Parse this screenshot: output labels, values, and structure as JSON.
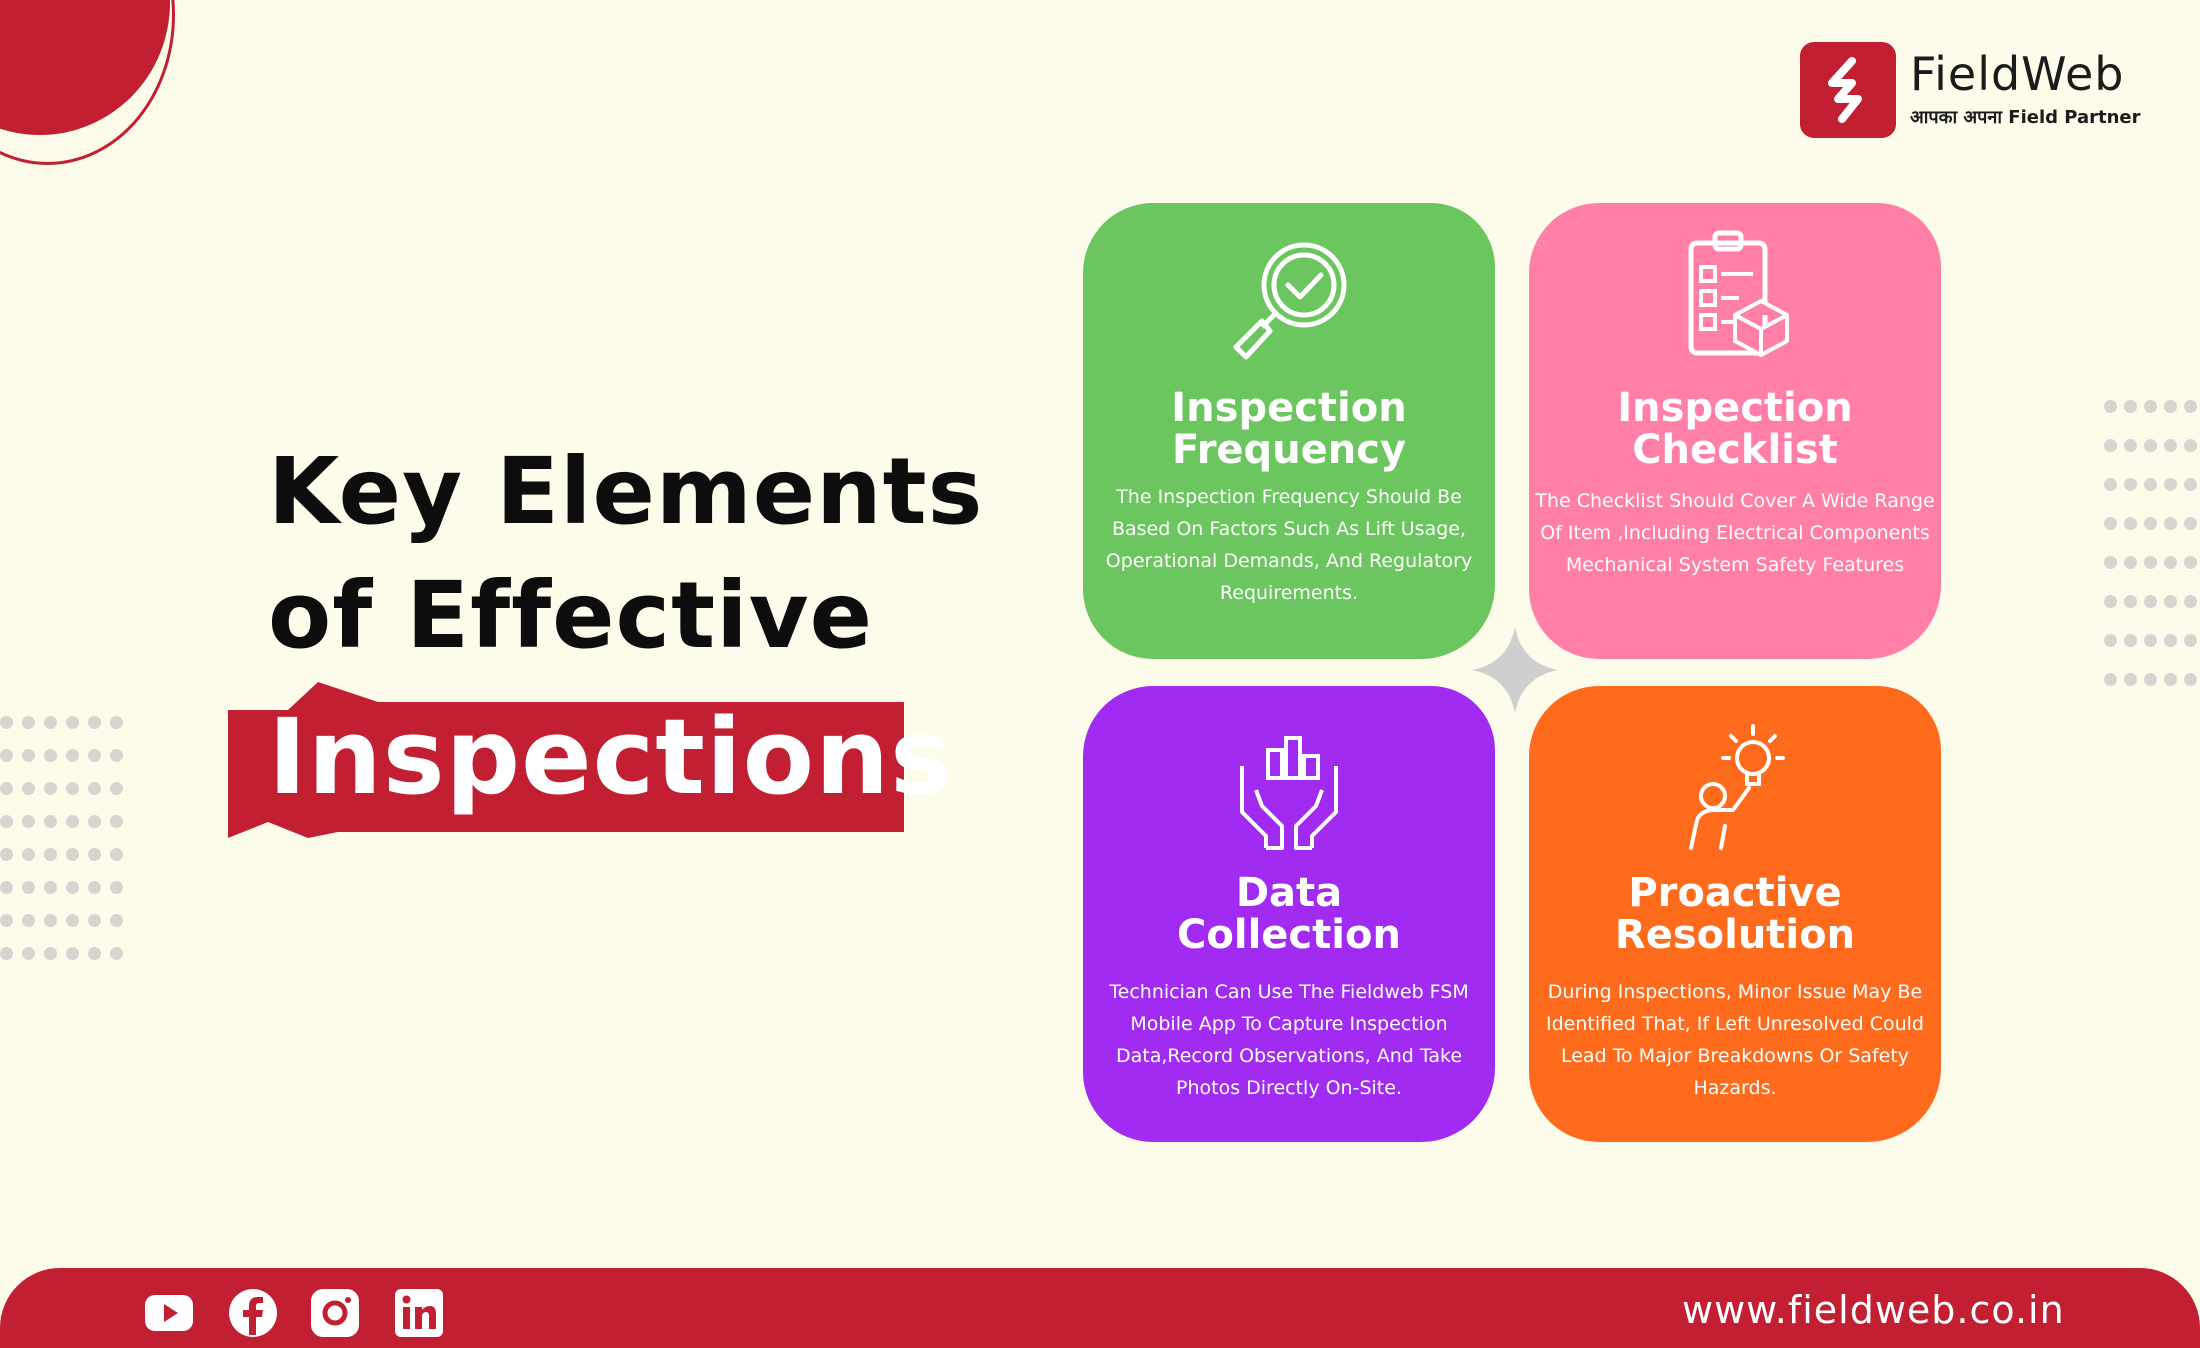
{
  "brand": {
    "name": "FieldWeb",
    "tagline": "आपका अपना  Field Partner",
    "primary_color": "#c21f33",
    "background_color": "#fdfbe9"
  },
  "headline": {
    "line1": "Key Elements",
    "line2": "of Effective",
    "highlight": "Inspections"
  },
  "cards": [
    {
      "title_line1": "Inspection",
      "title_line2": "Frequency",
      "body": "The Inspection Frequency  Should Be Based On Factors Such As Lift Usage, Operational Demands, And Regulatory Requirements.",
      "icon": "magnifier-check-icon",
      "color": "#6cc660"
    },
    {
      "title_line1": "Inspection",
      "title_line2": "Checklist",
      "body": "The Checklist Should Cover A Wide Range Of Item ,Including Electrical Components Mechanical System Safety Features",
      "icon": "clipboard-checklist-icon",
      "color": "#ff7fa6"
    },
    {
      "title_line1": "Data",
      "title_line2": "Collection",
      "body": "Technician Can Use The Fieldweb FSM Mobile App To Capture Inspection Data,Record Observations, And Take Photos Directly On-Site.",
      "icon": "hands-data-icon",
      "color": "#a22bf2"
    },
    {
      "title_line1": "Proactive",
      "title_line2": "Resolution",
      "body": "During Inspections, Minor Issue May Be Identified That, If Left Unresolved Could Lead To Major Breakdowns Or Safety Hazards.",
      "icon": "person-lightbulb-icon",
      "color": "#ff6b1c"
    }
  ],
  "footer": {
    "url": "www.fieldweb.co.in",
    "social": [
      "youtube-icon",
      "facebook-icon",
      "instagram-icon",
      "linkedin-icon"
    ]
  }
}
